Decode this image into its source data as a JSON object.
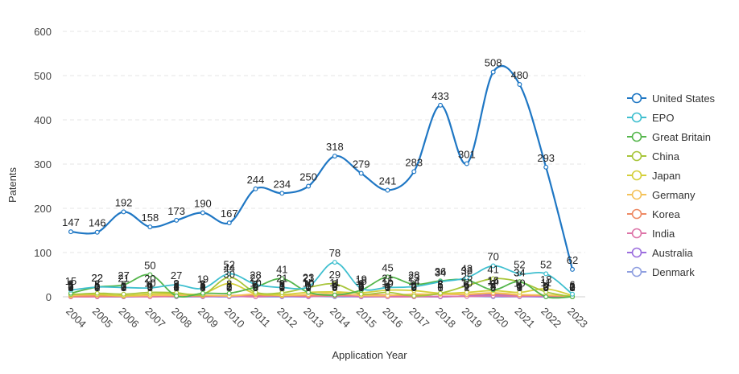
{
  "chart_data": {
    "type": "line",
    "title": "",
    "xlabel": "Application Year",
    "ylabel": "Patents",
    "ylim": [
      0,
      600
    ],
    "yticks": [
      0,
      100,
      200,
      300,
      400,
      500,
      600
    ],
    "grid": "horizontal dashed",
    "legend_position": "right",
    "x": [
      "2004",
      "2005",
      "2006",
      "2007",
      "2008",
      "2009",
      "2010",
      "2011",
      "2012",
      "2013",
      "2014",
      "2015",
      "2016",
      "2017",
      "2018",
      "2019",
      "2020",
      "2021",
      "2022",
      "2023"
    ],
    "series": [
      {
        "name": "United States",
        "color": "#1f77c4",
        "values": [
          147,
          146,
          192,
          158,
          173,
          190,
          167,
          244,
          234,
          250,
          318,
          279,
          241,
          283,
          433,
          301,
          508,
          480,
          293,
          62
        ]
      },
      {
        "name": "EPO",
        "color": "#3fbfcf",
        "values": [
          15,
          22,
          21,
          20,
          27,
          19,
          52,
          28,
          21,
          23,
          78,
          19,
          21,
          23,
          34,
          43,
          70,
          52,
          52,
          6
        ]
      },
      {
        "name": "Great Britain",
        "color": "#55b64c",
        "values": [
          8,
          22,
          27,
          50,
          2,
          8,
          8,
          22,
          41,
          10,
          4,
          15,
          45,
          28,
          36,
          38,
          16,
          34,
          0,
          0
        ]
      },
      {
        "name": "China",
        "color": "#a8c53a",
        "values": [
          5,
          8,
          6,
          10,
          9,
          5,
          44,
          10,
          9,
          21,
          29,
          6,
          10,
          2,
          8,
          25,
          41,
          34,
          11,
          0
        ]
      },
      {
        "name": "Japan",
        "color": "#d4cf3a",
        "values": [
          6,
          5,
          3,
          6,
          7,
          7,
          30,
          7,
          5,
          10,
          11,
          9,
          15,
          14,
          8,
          10,
          14,
          10,
          18,
          3
        ]
      },
      {
        "name": "Germany",
        "color": "#f4c25a",
        "values": [
          3,
          5,
          2,
          3,
          4,
          4,
          2,
          6,
          3,
          5,
          8,
          3,
          3,
          6,
          6,
          6,
          9,
          5,
          4,
          2
        ]
      },
      {
        "name": "Korea",
        "color": "#ee8a64",
        "values": [
          1,
          2,
          1,
          3,
          2,
          2,
          3,
          4,
          2,
          3,
          3,
          5,
          4,
          3,
          6,
          5,
          7,
          4,
          3,
          1
        ]
      },
      {
        "name": "India",
        "color": "#dd74a8",
        "values": [
          0,
          0,
          1,
          0,
          1,
          1,
          2,
          0,
          3,
          1,
          2,
          1,
          0,
          0,
          1,
          1,
          2,
          1,
          2,
          0
        ]
      },
      {
        "name": "Australia",
        "color": "#9c6ede",
        "values": [
          2,
          1,
          0,
          1,
          3,
          1,
          0,
          2,
          1,
          0,
          4,
          0,
          1,
          2,
          0,
          2,
          4,
          2,
          0,
          0
        ]
      },
      {
        "name": "Denmark",
        "color": "#8f9fe0",
        "values": [
          0,
          0,
          0,
          1,
          0,
          0,
          1,
          0,
          0,
          1,
          0,
          0,
          0,
          0,
          0,
          1,
          0,
          0,
          0,
          0
        ]
      }
    ]
  }
}
